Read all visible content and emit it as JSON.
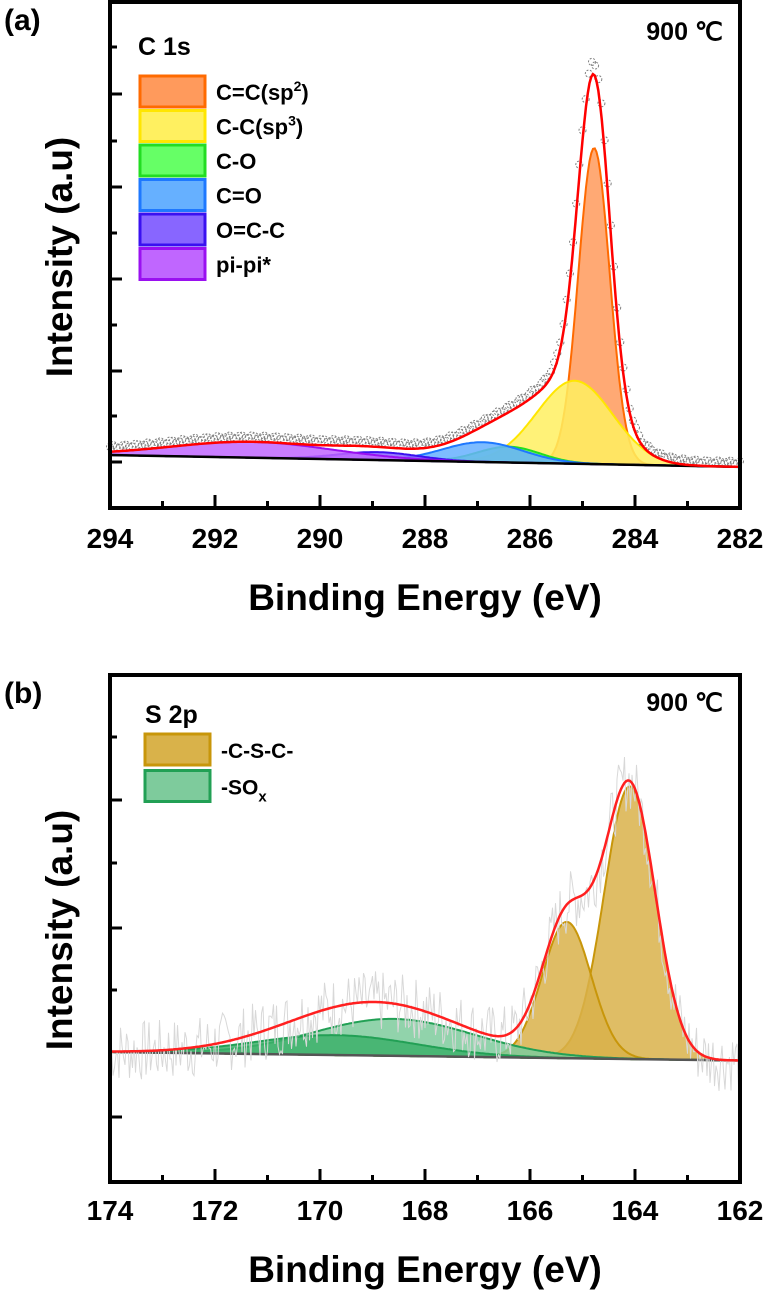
{
  "chart_data": [
    {
      "type": "area",
      "panel_label": "(a)",
      "title": "C 1s",
      "annotation": "900 ℃",
      "xlabel": "Binding Energy (eV)",
      "ylabel": "Intensity (a.u)",
      "xlim": [
        294,
        282
      ],
      "ylim": [
        -12,
        102
      ],
      "x_ticks": [
        294,
        292,
        290,
        288,
        286,
        284,
        282
      ],
      "x_tick_labels": [
        "294",
        "292",
        "290",
        "288",
        "286",
        "284",
        "282"
      ],
      "grid": false,
      "legend_position": "top-left",
      "background": {
        "color": "#000000",
        "left": 0,
        "right": -3
      },
      "envelope_color": "#ff0000",
      "raw_color": "#808080",
      "series": [
        {
          "name": "C=C(sp2)",
          "label_main": "C=C(sp",
          "label_sup": "2",
          "label_end": ")",
          "center": 284.78,
          "height": 80,
          "fwhm": 0.7,
          "fill": "#ff9a5c",
          "stroke": "#ff6a00"
        },
        {
          "name": "C-C(sp3)",
          "label_main": "C-C(sp",
          "label_sup": "3",
          "label_end": ")",
          "center": 285.15,
          "height": 21,
          "fwhm": 1.7,
          "fill": "#fff060",
          "stroke": "#ffe600"
        },
        {
          "name": "C-O",
          "label_main": "C-O",
          "center": 286.4,
          "height": 4,
          "fwhm": 1.4,
          "fill": "#66ff66",
          "stroke": "#22dd22"
        },
        {
          "name": "C=O",
          "label_main": "C=O",
          "center": 286.9,
          "height": 5,
          "fwhm": 1.8,
          "fill": "#66b0ff",
          "stroke": "#1e78ff"
        },
        {
          "name": "O=C-C",
          "label_main": "O=C-C",
          "center": 288.9,
          "height": 2,
          "fwhm": 1.8,
          "fill": "#8866ff",
          "stroke": "#3a10f0"
        },
        {
          "name": "pi-pi*",
          "label_main": "pi-pi*",
          "center": 291.3,
          "height": 4,
          "fwhm": 3.6,
          "fill": "#c066ff",
          "stroke": "#9a10f0"
        }
      ]
    },
    {
      "type": "area",
      "panel_label": "(b)",
      "title": "S 2p",
      "annotation": "900 ℃",
      "xlabel": "Binding Energy (eV)",
      "ylabel": "Intensity (a.u)",
      "xlim": [
        174,
        162
      ],
      "ylim": [
        -45,
        134
      ],
      "x_ticks": [
        174,
        172,
        170,
        168,
        166,
        164,
        162
      ],
      "x_tick_labels": [
        "174",
        "172",
        "170",
        "168",
        "166",
        "164",
        "162"
      ],
      "grid": false,
      "legend_position": "top-left",
      "background": {
        "color": "#555555",
        "left": 0,
        "right": -3
      },
      "envelope_color": "#ff2020",
      "raw_color": "#d8d8d8",
      "series": [
        {
          "name": "-C-S-C- (2p3/2)",
          "legend": true,
          "label_main": "-C-S-C-",
          "center": 164.1,
          "height": 96,
          "fwhm": 1.15,
          "fill": "#d9b24a",
          "stroke": "#c8960a"
        },
        {
          "name": "-C-S-C- (2p1/2)",
          "legend": false,
          "center": 165.3,
          "height": 48,
          "fwhm": 1.1,
          "fill": "#d9b24a",
          "stroke": "#c8960a"
        },
        {
          "name": "-SOx (a)",
          "legend": true,
          "label_main": "-SO",
          "label_sub": "x",
          "center": 168.6,
          "height": 13,
          "fwhm": 3.6,
          "fill": "#7ecb9c",
          "stroke": "#22a055"
        },
        {
          "name": "-SOx (b)",
          "legend": false,
          "center": 169.7,
          "height": 7,
          "fwhm": 3.6,
          "fill": "#3cb06a",
          "stroke": "#22a055"
        }
      ]
    }
  ]
}
